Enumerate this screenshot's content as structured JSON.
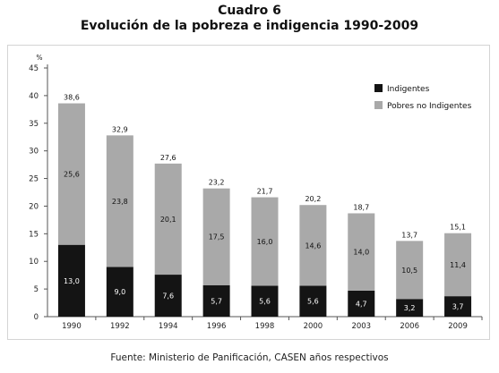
{
  "titles": {
    "line1": "Cuadro 6",
    "line2": "Evolución de la pobreza e indigencia 1990-2009"
  },
  "source": "Fuente: Ministerio de Panificación, CASEN años respectivos",
  "colors": {
    "indigentes": "#141414",
    "pobres_no_indigentes": "#a9a9a9",
    "axis": "#555555",
    "frame": "#d4d4d4"
  },
  "chart_data": {
    "type": "bar",
    "stacked": true,
    "ylabel": "%",
    "ylim": [
      0,
      45
    ],
    "yticks": [
      0,
      5,
      10,
      15,
      20,
      25,
      30,
      35,
      40,
      45
    ],
    "grid": false,
    "legend_position": "top-right",
    "categories": [
      "1990",
      "1992",
      "1994",
      "1996",
      "1998",
      "2000",
      "2003",
      "2006",
      "2009"
    ],
    "series": [
      {
        "name": "Indigentes",
        "color": "#141414",
        "values": [
          13.0,
          9.0,
          7.6,
          5.7,
          5.6,
          5.6,
          4.7,
          3.2,
          3.7
        ],
        "labels": [
          "13,0",
          "9,0",
          "7,6",
          "5,7",
          "5,6",
          "5,6",
          "4,7",
          "3,2",
          "3,7"
        ]
      },
      {
        "name": "Pobres no Indigentes",
        "color": "#a9a9a9",
        "values": [
          25.6,
          23.8,
          20.1,
          17.5,
          16.0,
          14.6,
          14.0,
          10.5,
          11.4
        ],
        "labels": [
          "25,6",
          "23,8",
          "20,1",
          "17,5",
          "16,0",
          "14,6",
          "14,0",
          "10,5",
          "11,4"
        ]
      }
    ],
    "totals": [
      38.6,
      32.9,
      27.6,
      23.2,
      21.7,
      20.2,
      18.7,
      13.7,
      15.1
    ],
    "total_labels": [
      "38,6",
      "32,9",
      "27,6",
      "23,2",
      "21,7",
      "20,2",
      "18,7",
      "13,7",
      "15,1"
    ]
  }
}
